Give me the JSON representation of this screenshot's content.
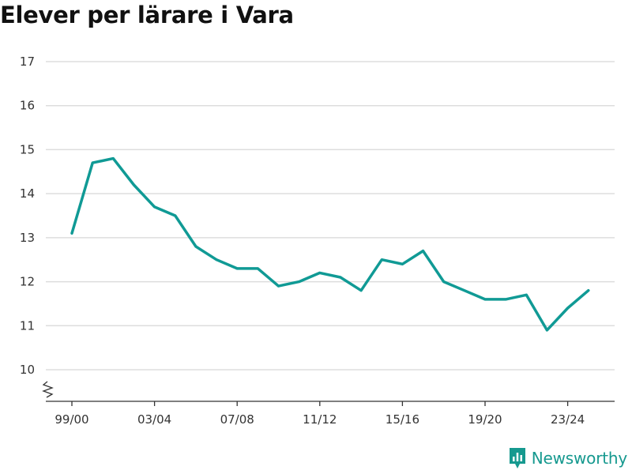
{
  "title": "Elever per lärare i Vara",
  "brand": {
    "name": "Newsworthy"
  },
  "colors": {
    "line": "#109a95",
    "grid": "#dddddd",
    "axis": "#333333",
    "text": "#333333",
    "brand": "#16998f"
  },
  "chart_data": {
    "type": "line",
    "title": "Elever per lärare i Vara",
    "xlabel": "",
    "ylabel": "",
    "x": [
      "99/00",
      "00/01",
      "01/02",
      "02/03",
      "03/04",
      "04/05",
      "05/06",
      "06/07",
      "07/08",
      "08/09",
      "09/10",
      "10/11",
      "11/12",
      "12/13",
      "13/14",
      "14/15",
      "15/16",
      "16/17",
      "17/18",
      "18/19",
      "19/20",
      "20/21",
      "21/22",
      "22/23",
      "23/24",
      "24/25"
    ],
    "x_tick_labels": [
      "99/00",
      "03/04",
      "07/08",
      "11/12",
      "15/16",
      "19/20",
      "23/24"
    ],
    "y_ticks": [
      10,
      11,
      12,
      13,
      14,
      15,
      16,
      17
    ],
    "ylim": [
      10,
      17
    ],
    "y_axis_break": true,
    "grid": true,
    "series": [
      {
        "values": [
          13.1,
          14.7,
          14.8,
          14.2,
          13.7,
          13.5,
          12.8,
          12.5,
          12.3,
          12.3,
          11.9,
          12.0,
          12.2,
          12.1,
          11.8,
          12.5,
          12.4,
          12.7,
          12.0,
          11.8,
          11.6,
          11.6,
          11.7,
          10.9,
          11.4,
          11.8
        ]
      }
    ]
  }
}
